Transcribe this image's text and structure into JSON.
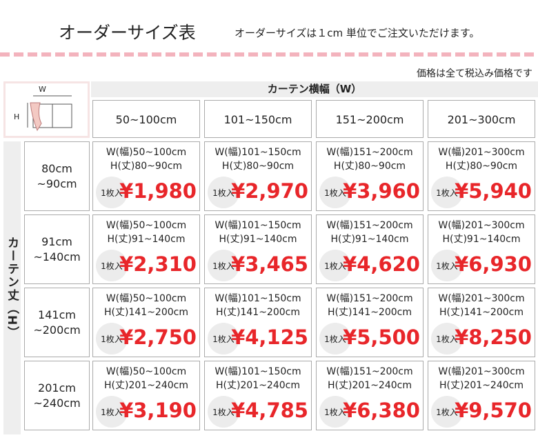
{
  "header": {
    "title": "オーダーサイズ表",
    "subtitle": "オーダーサイズは１cm 単位でご注文いただけます。"
  },
  "note": "価格は全て税込み価格です",
  "diagram": {
    "w": "W",
    "h": "H"
  },
  "table": {
    "width_header": "カーテン横幅（W）",
    "height_header": "カーテン丈（H）",
    "columns": [
      "50~100cm",
      "101~150cm",
      "151~200cm",
      "201~300cm"
    ],
    "rows": [
      {
        "label": [
          "80cm",
          "~90cm"
        ],
        "cells": [
          {
            "w": "W(幅)50~100cm",
            "h": "H(丈)80~90cm",
            "qty": "1枚入",
            "price": "¥1,980"
          },
          {
            "w": "W(幅)101~150cm",
            "h": "H(丈)80~90cm",
            "qty": "1枚入",
            "price": "¥2,970"
          },
          {
            "w": "W(幅)151~200cm",
            "h": "H(丈)80~90cm",
            "qty": "1枚入",
            "price": "¥3,960"
          },
          {
            "w": "W(幅)201~300cm",
            "h": "H(丈)80~90cm",
            "qty": "1枚入",
            "price": "¥5,940"
          }
        ]
      },
      {
        "label": [
          "91cm",
          "~140cm"
        ],
        "cells": [
          {
            "w": "W(幅)50~100cm",
            "h": "H(丈)91~140cm",
            "qty": "1枚入",
            "price": "¥2,310"
          },
          {
            "w": "W(幅)101~150cm",
            "h": "H(丈)91~140cm",
            "qty": "1枚入",
            "price": "¥3,465"
          },
          {
            "w": "W(幅)151~200cm",
            "h": "H(丈)91~140cm",
            "qty": "1枚入",
            "price": "¥4,620"
          },
          {
            "w": "W(幅)201~300cm",
            "h": "H(丈)91~140cm",
            "qty": "1枚入",
            "price": "¥6,930"
          }
        ]
      },
      {
        "label": [
          "141cm",
          "~200cm"
        ],
        "cells": [
          {
            "w": "W(幅)50~100cm",
            "h": "H(丈)141~200cm",
            "qty": "1枚入",
            "price": "¥2,750"
          },
          {
            "w": "W(幅)101~150cm",
            "h": "H(丈)141~200cm",
            "qty": "1枚入",
            "price": "¥4,125"
          },
          {
            "w": "W(幅)151~200cm",
            "h": "H(丈)141~200cm",
            "qty": "1枚入",
            "price": "¥5,500"
          },
          {
            "w": "W(幅)201~300cm",
            "h": "H(丈)141~200cm",
            "qty": "1枚入",
            "price": "¥8,250"
          }
        ]
      },
      {
        "label": [
          "201cm",
          "~240cm"
        ],
        "cells": [
          {
            "w": "W(幅)50~100cm",
            "h": "H(丈)201~240cm",
            "qty": "1枚入",
            "price": "¥3,190"
          },
          {
            "w": "W(幅)101~150cm",
            "h": "H(丈)201~240cm",
            "qty": "1枚入",
            "price": "¥4,785"
          },
          {
            "w": "W(幅)151~200cm",
            "h": "H(丈)201~240cm",
            "qty": "1枚入",
            "price": "¥6,380"
          },
          {
            "w": "W(幅)201~300cm",
            "h": "H(丈)201~240cm",
            "qty": "1枚入",
            "price": "¥9,570"
          }
        ]
      }
    ]
  }
}
